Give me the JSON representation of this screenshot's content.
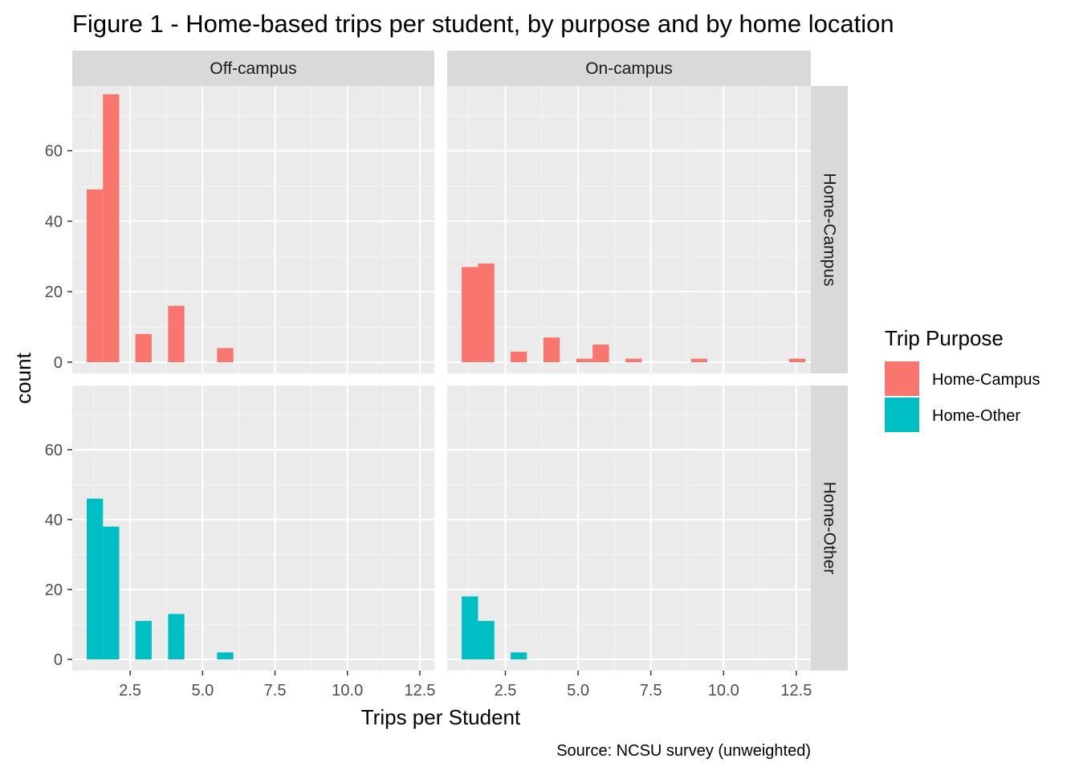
{
  "chart_data": {
    "type": "bar",
    "subtype": "faceted-histogram",
    "title": "Figure 1 - Home-based trips per student, by purpose and by home location",
    "xlabel": "Trips per Student",
    "ylabel": "count",
    "caption": "Source: NCSU survey (unweighted)",
    "xlim": [
      0.5,
      13.0
    ],
    "ylim": [
      0,
      77
    ],
    "x_ticks": [
      2.5,
      5.0,
      7.5,
      10.0,
      12.5
    ],
    "x_tick_labels": [
      "2.5",
      "5.0",
      "7.5",
      "10.0",
      "12.5"
    ],
    "y_ticks": [
      0,
      20,
      40,
      60
    ],
    "y_tick_labels": [
      "0",
      "20",
      "40",
      "60"
    ],
    "bin_width": 0.5625,
    "columns": [
      "Off-campus",
      "On-campus"
    ],
    "rows": [
      "Home-Campus",
      "Home-Other"
    ],
    "legend": {
      "title": "Trip Purpose",
      "position": "right",
      "entries": [
        {
          "label": "Home-Campus",
          "color": "#F8766D"
        },
        {
          "label": "Home-Other",
          "color": "#00BFC4"
        }
      ]
    },
    "panels": [
      {
        "column": "Off-campus",
        "row": "Home-Campus",
        "color": "#F8766D",
        "bins": [
          {
            "x": 1.28,
            "count": 49
          },
          {
            "x": 1.84,
            "count": 76
          },
          {
            "x": 2.96,
            "count": 8
          },
          {
            "x": 4.09,
            "count": 16
          },
          {
            "x": 5.78,
            "count": 4
          }
        ]
      },
      {
        "column": "On-campus",
        "row": "Home-Campus",
        "color": "#F8766D",
        "bins": [
          {
            "x": 1.28,
            "count": 27
          },
          {
            "x": 1.84,
            "count": 28
          },
          {
            "x": 2.96,
            "count": 3
          },
          {
            "x": 4.09,
            "count": 7
          },
          {
            "x": 5.22,
            "count": 1
          },
          {
            "x": 5.78,
            "count": 5
          },
          {
            "x": 6.91,
            "count": 1
          },
          {
            "x": 9.16,
            "count": 1
          },
          {
            "x": 12.53,
            "count": 1
          }
        ]
      },
      {
        "column": "Off-campus",
        "row": "Home-Other",
        "color": "#00BFC4",
        "bins": [
          {
            "x": 1.28,
            "count": 46
          },
          {
            "x": 1.84,
            "count": 38
          },
          {
            "x": 2.96,
            "count": 11
          },
          {
            "x": 4.09,
            "count": 13
          },
          {
            "x": 5.78,
            "count": 2
          }
        ]
      },
      {
        "column": "On-campus",
        "row": "Home-Other",
        "color": "#00BFC4",
        "bins": [
          {
            "x": 1.28,
            "count": 18
          },
          {
            "x": 1.84,
            "count": 11
          },
          {
            "x": 2.96,
            "count": 2
          }
        ]
      }
    ]
  }
}
